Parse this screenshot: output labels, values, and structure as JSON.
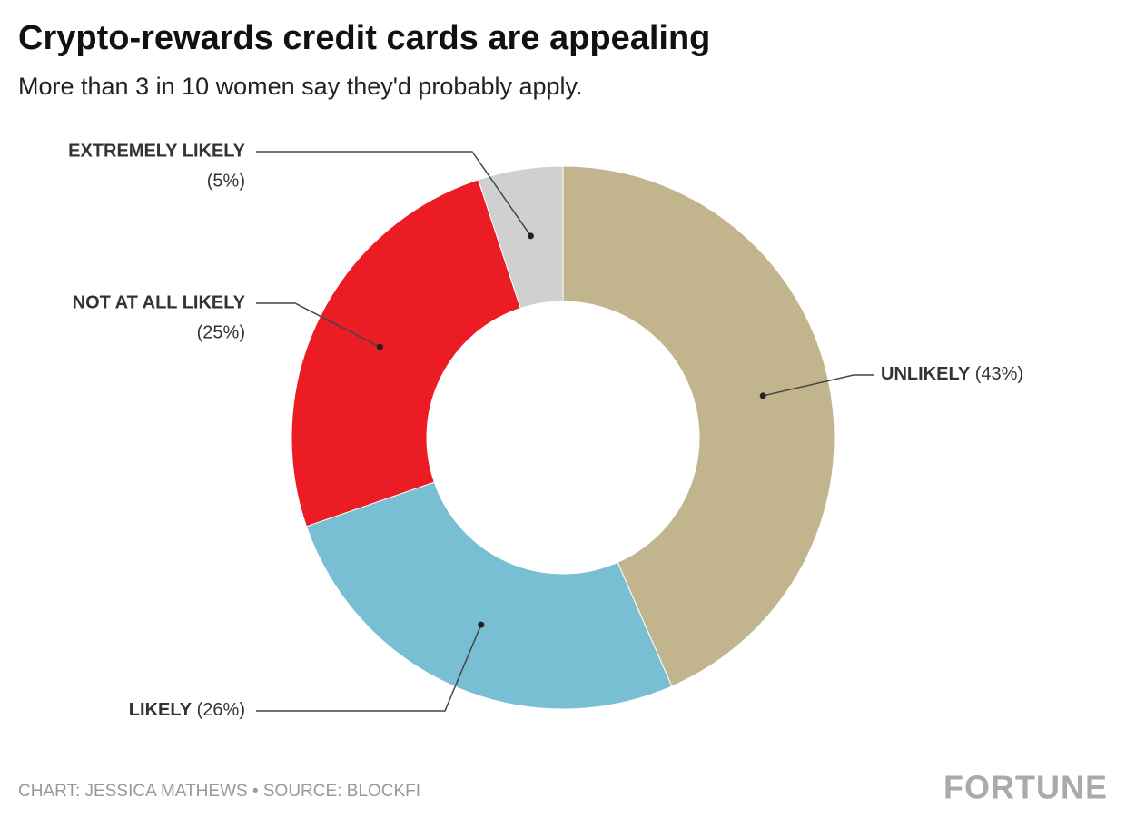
{
  "chart_data": {
    "type": "pie",
    "title": "Crypto-rewards credit cards are appealing",
    "subtitle": "More than 3 in 10 women say they'd probably apply.",
    "categories": [
      "UNLIKELY",
      "LIKELY",
      "NOT AT ALL LIKELY",
      "EXTREMELY LIKELY"
    ],
    "values": [
      43,
      26,
      25,
      5
    ],
    "value_labels": [
      "(43%)",
      "(26%)",
      "(25%)",
      "(5%)"
    ],
    "colors": [
      "#c2b48c",
      "#78bfd4",
      "#ec1c24",
      "#d0d0d0"
    ],
    "donut": true,
    "source": "CHART: JESSICA MATHEWS • SOURCE: BLOCKFI",
    "logo": "FORTUNE"
  }
}
